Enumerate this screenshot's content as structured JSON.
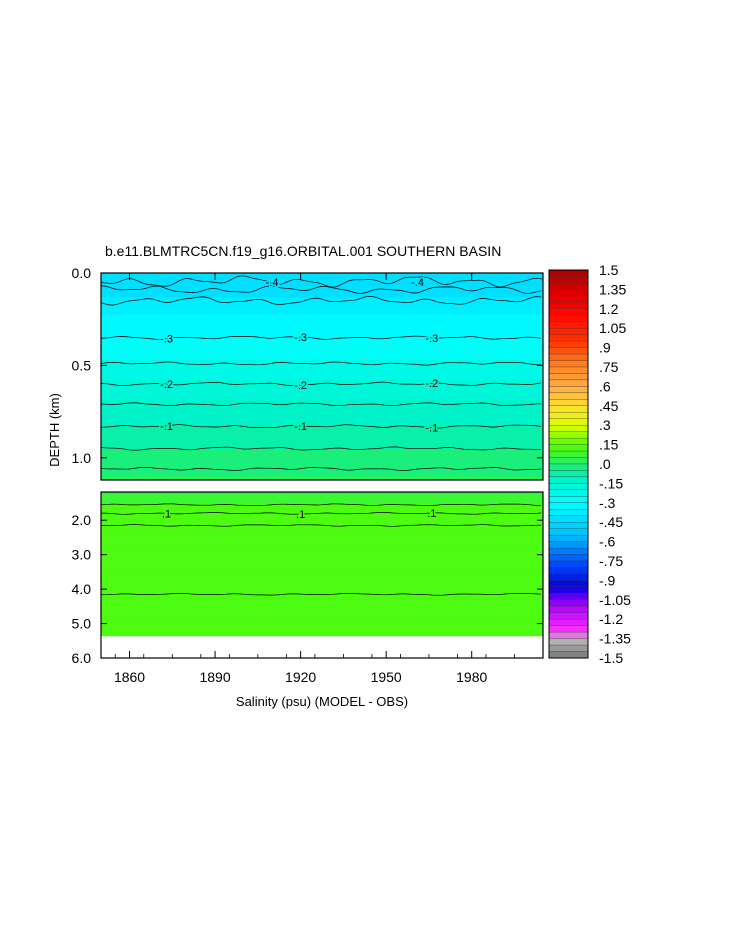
{
  "chart_data": {
    "type": "heatmap",
    "title": "b.e11.BLMTRC5CN.f19_g16.ORBITAL.001 SOUTHERN BASIN",
    "xlabel": "Salinity (psu) (MODEL - OBS)",
    "ylabel": "DEPTH (km)",
    "x_ticks": [
      "1860",
      "1890",
      "1920",
      "1950",
      "1980"
    ],
    "x_tick_values": [
      1860,
      1890,
      1920,
      1950,
      1980
    ],
    "xlim": [
      1850,
      2005
    ],
    "upper_panel": {
      "ylim": [
        0.0,
        1.12
      ],
      "y_ticks": [
        "0.0",
        "0.5",
        "1.0"
      ],
      "y_tick_values": [
        0.0,
        0.5,
        1.0
      ]
    },
    "lower_panel": {
      "ylim": [
        1.18,
        6.0
      ],
      "y_ticks": [
        "2.0",
        "3.0",
        "4.0",
        "5.0",
        "6.0"
      ],
      "y_tick_values": [
        2.0,
        3.0,
        4.0,
        5.0,
        6.0
      ],
      "data_bottom_depth": 5.35
    },
    "profile": [
      {
        "depth": 0.0,
        "value": -0.45
      },
      {
        "depth": 0.1,
        "value": -0.42
      },
      {
        "depth": 0.2,
        "value": -0.36
      },
      {
        "depth": 0.35,
        "value": -0.3
      },
      {
        "depth": 0.5,
        "value": -0.24
      },
      {
        "depth": 0.6,
        "value": -0.19
      },
      {
        "depth": 0.8,
        "value": -0.11
      },
      {
        "depth": 1.0,
        "value": -0.03
      },
      {
        "depth": 1.1,
        "value": 0.0
      },
      {
        "depth": 1.3,
        "value": 0.08
      },
      {
        "depth": 1.5,
        "value": 0.1
      },
      {
        "depth": 2.0,
        "value": 0.13
      },
      {
        "depth": 4.0,
        "value": 0.14
      },
      {
        "depth": 5.35,
        "value": 0.15
      }
    ],
    "upper_contours": [
      {
        "depth": 0.09,
        "label": ""
      },
      {
        "depth": 0.15,
        "label": ""
      },
      {
        "depth": 0.35,
        "label": "-.3"
      },
      {
        "depth": 0.49,
        "label": ""
      },
      {
        "depth": 0.6,
        "label": "-.2"
      },
      {
        "depth": 0.71,
        "label": ""
      },
      {
        "depth": 0.83,
        "label": "-.1"
      },
      {
        "depth": 0.95,
        "label": ""
      },
      {
        "depth": 1.06,
        "label": ""
      }
    ],
    "upper_top_labels": [
      {
        "x": 1910,
        "label": "-.4"
      },
      {
        "x": 1961,
        "label": "-.4"
      }
    ],
    "lower_contours": [
      {
        "depth": 1.55,
        "label": ""
      },
      {
        "depth": 1.8,
        "label": ".1"
      },
      {
        "depth": 2.15,
        "label": ""
      },
      {
        "depth": 4.15,
        "label": ""
      }
    ],
    "colorbar": {
      "range": [
        -1.5,
        1.5
      ],
      "step": 0.05,
      "labels": [
        "1.5",
        "1.35",
        "1.2",
        "1.05",
        ".9",
        ".75",
        ".6",
        ".45",
        ".3",
        ".15",
        ".0",
        "-.15",
        "-.3",
        "-.45",
        "-.6",
        "-.75",
        "-.9",
        "-1.05",
        "-1.2",
        "-1.35",
        "-1.5"
      ],
      "label_values": [
        1.5,
        1.35,
        1.2,
        1.05,
        0.9,
        0.75,
        0.6,
        0.45,
        0.3,
        0.15,
        0.0,
        -0.15,
        -0.3,
        -0.45,
        -0.6,
        -0.75,
        -0.9,
        -1.05,
        -1.2,
        -1.35,
        -1.5
      ],
      "stops": [
        {
          "v": -1.5,
          "color": "#777777"
        },
        {
          "v": -1.35,
          "color": "#bdbdbd"
        },
        {
          "v": -1.3,
          "color": "#ff33ff"
        },
        {
          "v": -1.1,
          "color": "#b000ff"
        },
        {
          "v": -0.95,
          "color": "#0000dd"
        },
        {
          "v": -0.75,
          "color": "#0055ff"
        },
        {
          "v": -0.55,
          "color": "#00bfff"
        },
        {
          "v": -0.3,
          "color": "#00ffff"
        },
        {
          "v": -0.1,
          "color": "#00f0c0"
        },
        {
          "v": 0.0,
          "color": "#22ee66"
        },
        {
          "v": 0.15,
          "color": "#55ff00"
        },
        {
          "v": 0.3,
          "color": "#ddff00"
        },
        {
          "v": 0.45,
          "color": "#ffdd33"
        },
        {
          "v": 0.6,
          "color": "#ffaa44"
        },
        {
          "v": 0.75,
          "color": "#ff8822"
        },
        {
          "v": 0.95,
          "color": "#ff3300"
        },
        {
          "v": 1.2,
          "color": "#ff0000"
        },
        {
          "v": 1.5,
          "color": "#aa0000"
        }
      ]
    }
  }
}
